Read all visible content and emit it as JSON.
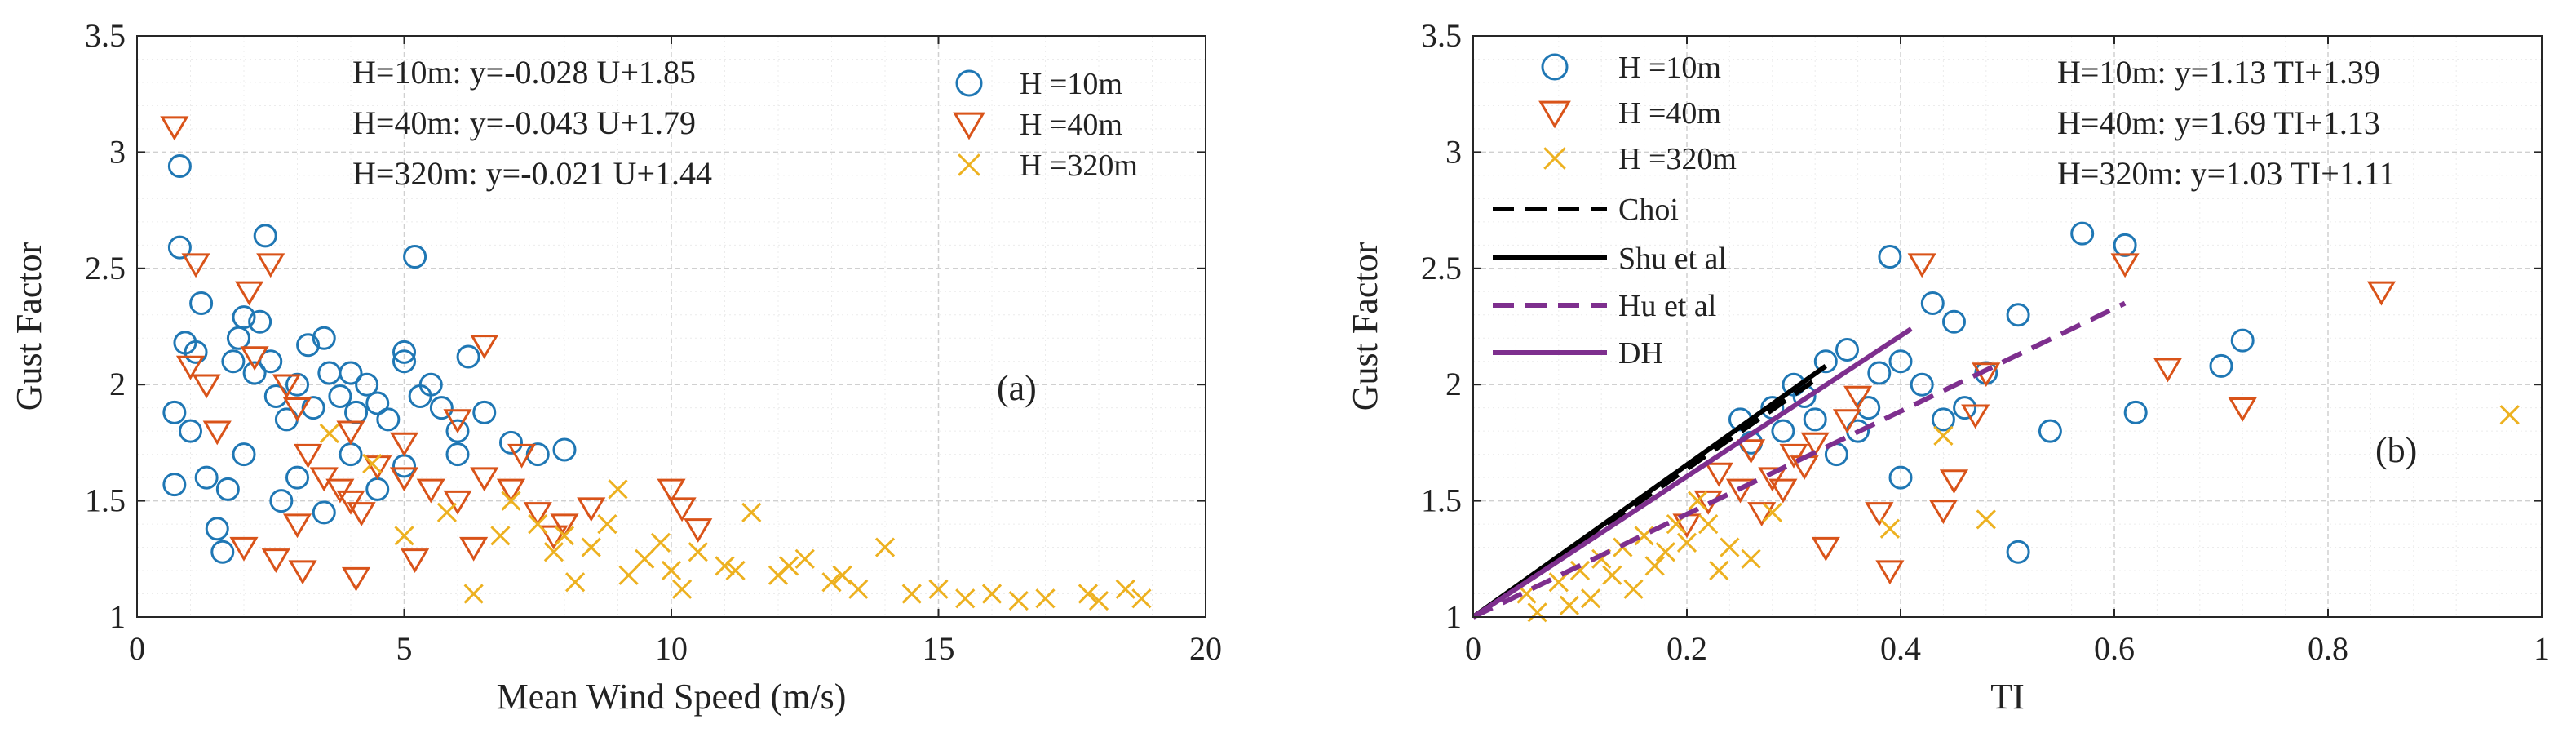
{
  "chart_data": [
    {
      "type": "scatter",
      "panel_label": "(a)",
      "xlabel": "Mean Wind Speed (m/s)",
      "ylabel": "Gust Factor",
      "xlim": [
        0,
        20
      ],
      "ylim": [
        1,
        3.5
      ],
      "xticks": [
        "0",
        "5",
        "10",
        "15",
        "20"
      ],
      "yticks": [
        "1",
        "1.5",
        "2",
        "2.5",
        "3",
        "3.5"
      ],
      "grid": true,
      "legend_position": "top-right",
      "annotations": [
        "H=10m: y=-0.028 U+1.85",
        "H=40m: y=-0.043 U+1.79",
        "H=320m: y=-0.021 U+1.44"
      ],
      "series": [
        {
          "name": "H =10m",
          "marker": "circle",
          "color": "#1f77b4",
          "points": [
            [
              0.7,
              1.88
            ],
            [
              0.7,
              1.57
            ],
            [
              0.8,
              2.59
            ],
            [
              0.8,
              2.94
            ],
            [
              0.9,
              2.18
            ],
            [
              1.0,
              1.8
            ],
            [
              1.1,
              2.14
            ],
            [
              1.2,
              2.35
            ],
            [
              1.3,
              1.6
            ],
            [
              1.5,
              1.38
            ],
            [
              1.6,
              1.28
            ],
            [
              1.7,
              1.55
            ],
            [
              1.8,
              2.1
            ],
            [
              1.9,
              2.2
            ],
            [
              2.0,
              2.29
            ],
            [
              2.0,
              1.7
            ],
            [
              2.2,
              2.05
            ],
            [
              2.3,
              2.27
            ],
            [
              2.4,
              2.64
            ],
            [
              2.5,
              2.1
            ],
            [
              2.6,
              1.95
            ],
            [
              2.8,
              1.85
            ],
            [
              3.0,
              2.0
            ],
            [
              3.2,
              2.17
            ],
            [
              3.3,
              1.9
            ],
            [
              3.5,
              2.2
            ],
            [
              3.6,
              2.05
            ],
            [
              3.8,
              1.95
            ],
            [
              4.0,
              2.05
            ],
            [
              4.1,
              1.88
            ],
            [
              4.3,
              2.0
            ],
            [
              4.5,
              1.92
            ],
            [
              4.7,
              1.85
            ],
            [
              5.0,
              2.1
            ],
            [
              5.0,
              2.14
            ],
            [
              5.2,
              2.55
            ],
            [
              5.3,
              1.95
            ],
            [
              5.5,
              2.0
            ],
            [
              5.7,
              1.9
            ],
            [
              6.0,
              1.8
            ],
            [
              6.2,
              2.12
            ],
            [
              6.5,
              1.88
            ],
            [
              7.0,
              1.75
            ],
            [
              7.5,
              1.7
            ],
            [
              8.0,
              1.72
            ],
            [
              3.0,
              1.6
            ],
            [
              4.0,
              1.7
            ],
            [
              5.0,
              1.65
            ],
            [
              6.0,
              1.7
            ],
            [
              2.7,
              1.5
            ],
            [
              3.5,
              1.45
            ],
            [
              4.5,
              1.55
            ]
          ]
        },
        {
          "name": "H =40m",
          "marker": "triangle-down",
          "color": "#d95319",
          "points": [
            [
              0.7,
              3.11
            ],
            [
              1.1,
              2.52
            ],
            [
              1.0,
              2.08
            ],
            [
              1.3,
              2.0
            ],
            [
              1.5,
              1.8
            ],
            [
              2.1,
              2.4
            ],
            [
              2.2,
              2.12
            ],
            [
              2.5,
              2.52
            ],
            [
              2.8,
              2.0
            ],
            [
              3.0,
              1.9
            ],
            [
              3.2,
              1.7
            ],
            [
              3.5,
              1.6
            ],
            [
              3.8,
              1.55
            ],
            [
              4.0,
              1.5
            ],
            [
              4.2,
              1.45
            ],
            [
              4.5,
              1.65
            ],
            [
              5.0,
              1.6
            ],
            [
              5.5,
              1.55
            ],
            [
              6.0,
              1.5
            ],
            [
              6.5,
              2.17
            ],
            [
              6.5,
              1.6
            ],
            [
              7.0,
              1.55
            ],
            [
              7.2,
              1.7
            ],
            [
              7.5,
              1.45
            ],
            [
              2.6,
              1.25
            ],
            [
              3.1,
              1.2
            ],
            [
              4.1,
              1.17
            ],
            [
              5.2,
              1.25
            ],
            [
              6.3,
              1.3
            ],
            [
              8.5,
              1.47
            ],
            [
              10.0,
              1.55
            ],
            [
              10.2,
              1.47
            ],
            [
              10.5,
              1.38
            ],
            [
              8.0,
              1.4
            ],
            [
              2.0,
              1.3
            ],
            [
              3.0,
              1.4
            ],
            [
              5.0,
              1.75
            ],
            [
              6.0,
              1.85
            ],
            [
              4.0,
              1.8
            ],
            [
              7.8,
              1.35
            ]
          ]
        },
        {
          "name": "H =320m",
          "marker": "x",
          "color": "#edb120",
          "points": [
            [
              3.6,
              1.79
            ],
            [
              4.4,
              1.66
            ],
            [
              5.0,
              1.35
            ],
            [
              6.3,
              1.1
            ],
            [
              7.0,
              1.5
            ],
            [
              7.5,
              1.4
            ],
            [
              8.0,
              1.35
            ],
            [
              8.5,
              1.3
            ],
            [
              9.0,
              1.55
            ],
            [
              9.5,
              1.25
            ],
            [
              10.0,
              1.2
            ],
            [
              10.5,
              1.28
            ],
            [
              11.0,
              1.22
            ],
            [
              11.5,
              1.45
            ],
            [
              12.0,
              1.18
            ],
            [
              12.5,
              1.25
            ],
            [
              13.0,
              1.15
            ],
            [
              13.5,
              1.12
            ],
            [
              14.0,
              1.3
            ],
            [
              14.5,
              1.1
            ],
            [
              15.0,
              1.12
            ],
            [
              15.5,
              1.08
            ],
            [
              16.0,
              1.1
            ],
            [
              16.5,
              1.07
            ],
            [
              17.0,
              1.08
            ],
            [
              17.8,
              1.1
            ],
            [
              18.0,
              1.07
            ],
            [
              18.5,
              1.12
            ],
            [
              18.8,
              1.08
            ],
            [
              8.2,
              1.15
            ],
            [
              9.2,
              1.18
            ],
            [
              10.2,
              1.12
            ],
            [
              11.2,
              1.2
            ],
            [
              12.2,
              1.22
            ],
            [
              13.2,
              1.18
            ],
            [
              6.8,
              1.35
            ],
            [
              7.8,
              1.28
            ],
            [
              8.8,
              1.4
            ],
            [
              9.8,
              1.32
            ],
            [
              5.8,
              1.45
            ]
          ]
        }
      ]
    },
    {
      "type": "scatter",
      "panel_label": "(b)",
      "xlabel": "TI",
      "ylabel": "Gust Factor",
      "xlim": [
        0,
        1
      ],
      "ylim": [
        1,
        3.5
      ],
      "xticks": [
        "0",
        "0.2",
        "0.4",
        "0.6",
        "0.8",
        "1"
      ],
      "yticks": [
        "1",
        "1.5",
        "2",
        "2.5",
        "3",
        "3.5"
      ],
      "grid": true,
      "legend_position": "top-left",
      "annotations": [
        "H=10m: y=1.13 TI+1.39",
        "H=40m: y=1.69 TI+1.13",
        "H=320m: y=1.03 TI+1.11"
      ],
      "series": [
        {
          "name": "H =10m",
          "marker": "circle",
          "color": "#1f77b4",
          "points": [
            [
              0.39,
              2.55
            ],
            [
              0.43,
              2.35
            ],
            [
              0.45,
              2.27
            ],
            [
              0.51,
              2.3
            ],
            [
              0.51,
              1.28
            ],
            [
              0.54,
              1.8
            ],
            [
              0.57,
              2.65
            ],
            [
              0.61,
              2.6
            ],
            [
              0.62,
              1.88
            ],
            [
              0.7,
              2.08
            ],
            [
              0.72,
              2.19
            ],
            [
              0.44,
              1.85
            ],
            [
              0.48,
              2.05
            ],
            [
              0.4,
              2.1
            ],
            [
              0.42,
              2.0
            ],
            [
              0.35,
              2.15
            ],
            [
              0.38,
              2.05
            ],
            [
              0.36,
              1.8
            ],
            [
              0.3,
              2.0
            ],
            [
              0.28,
              1.9
            ],
            [
              0.32,
              1.85
            ],
            [
              0.26,
              1.75
            ],
            [
              0.34,
              1.7
            ],
            [
              0.37,
              1.9
            ],
            [
              0.33,
              2.1
            ],
            [
              0.31,
              1.95
            ],
            [
              0.29,
              1.8
            ],
            [
              0.25,
              1.85
            ],
            [
              0.4,
              1.6
            ],
            [
              0.46,
              1.9
            ]
          ]
        },
        {
          "name": "H =40m",
          "marker": "triangle-down",
          "color": "#d95319",
          "points": [
            [
              0.42,
              2.52
            ],
            [
              0.61,
              2.52
            ],
            [
              0.85,
              2.4
            ],
            [
              0.65,
              2.07
            ],
            [
              0.72,
              1.9
            ],
            [
              0.44,
              1.46
            ],
            [
              0.45,
              1.59
            ],
            [
              0.48,
              2.05
            ],
            [
              0.47,
              1.87
            ],
            [
              0.39,
              1.2
            ],
            [
              0.33,
              1.3
            ],
            [
              0.38,
              1.45
            ],
            [
              0.3,
              1.7
            ],
            [
              0.28,
              1.6
            ],
            [
              0.25,
              1.55
            ],
            [
              0.22,
              1.5
            ],
            [
              0.32,
              1.75
            ],
            [
              0.35,
              1.85
            ],
            [
              0.27,
              1.45
            ],
            [
              0.2,
              1.4
            ],
            [
              0.36,
              1.95
            ],
            [
              0.31,
              1.65
            ],
            [
              0.26,
              1.72
            ],
            [
              0.23,
              1.62
            ],
            [
              0.29,
              1.55
            ]
          ]
        },
        {
          "name": "H =320m",
          "marker": "x",
          "color": "#edb120",
          "points": [
            [
              0.97,
              1.87
            ],
            [
              0.48,
              1.42
            ],
            [
              0.44,
              1.78
            ],
            [
              0.39,
              1.38
            ],
            [
              0.05,
              1.1
            ],
            [
              0.08,
              1.15
            ],
            [
              0.1,
              1.2
            ],
            [
              0.12,
              1.25
            ],
            [
              0.14,
              1.3
            ],
            [
              0.16,
              1.35
            ],
            [
              0.18,
              1.28
            ],
            [
              0.2,
              1.32
            ],
            [
              0.22,
              1.4
            ],
            [
              0.24,
              1.3
            ],
            [
              0.26,
              1.25
            ],
            [
              0.28,
              1.45
            ],
            [
              0.13,
              1.18
            ],
            [
              0.15,
              1.12
            ],
            [
              0.17,
              1.22
            ],
            [
              0.19,
              1.4
            ],
            [
              0.21,
              1.5
            ],
            [
              0.09,
              1.05
            ],
            [
              0.11,
              1.08
            ],
            [
              0.06,
              1.02
            ],
            [
              0.23,
              1.2
            ]
          ]
        },
        {
          "name": "Choi",
          "type": "line",
          "style": "dashed",
          "color": "#000000",
          "x": [
            0.0,
            0.32
          ],
          "y": [
            1.0,
            2.02
          ]
        },
        {
          "name": "Shu et al",
          "type": "line",
          "style": "solid",
          "color": "#000000",
          "x": [
            0.0,
            0.33
          ],
          "y": [
            1.0,
            2.08
          ]
        },
        {
          "name": "Hu et al",
          "type": "line",
          "style": "dashed",
          "color": "#7e2f8e",
          "x": [
            0.0,
            0.61
          ],
          "y": [
            1.0,
            2.35
          ]
        },
        {
          "name": "DH",
          "type": "line",
          "style": "solid",
          "color": "#7e2f8e",
          "x": [
            0.0,
            0.41
          ],
          "y": [
            1.0,
            2.24
          ]
        }
      ]
    }
  ]
}
